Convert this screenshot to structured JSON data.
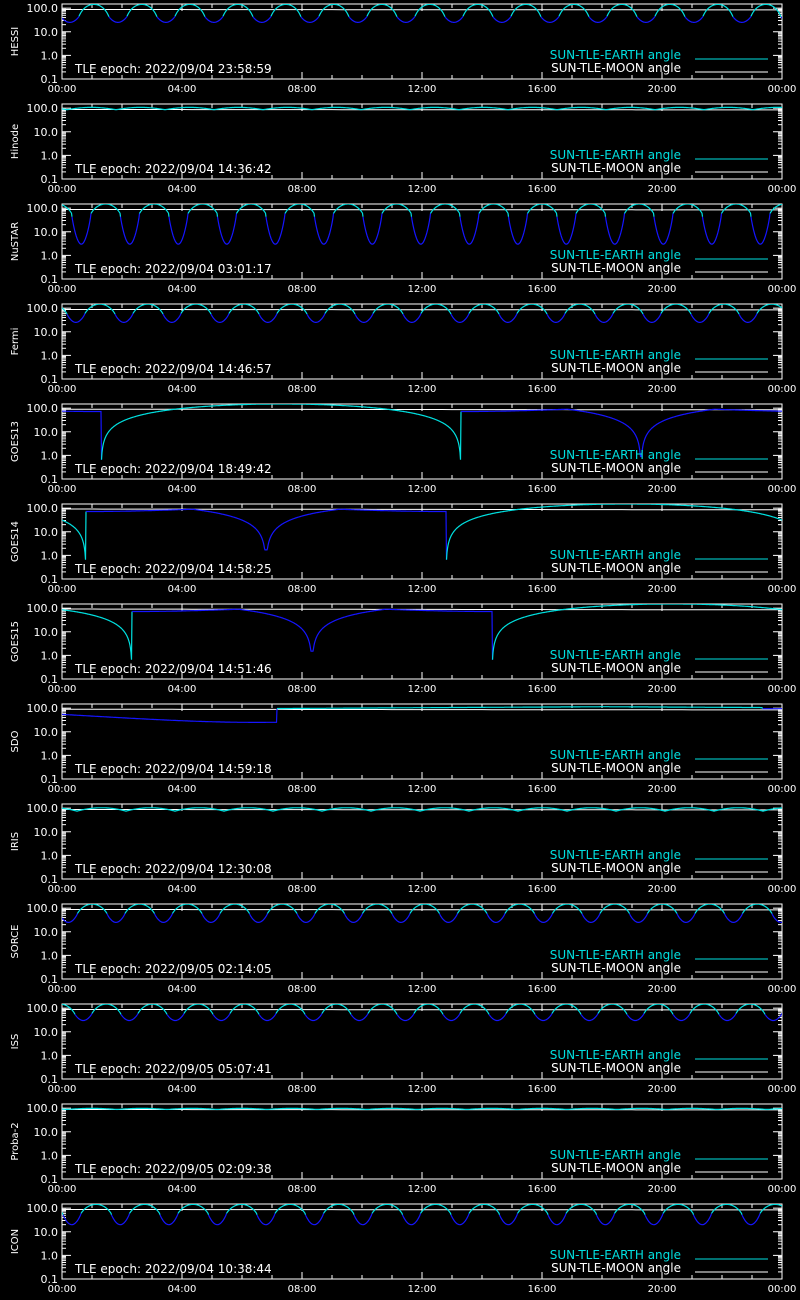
{
  "figure": {
    "background": "#000000",
    "axis_color": "#ffffff",
    "earth_color": "#00e0e0",
    "moon_color": "#ffffff",
    "eclipse_color": "#1515ff",
    "legend": {
      "earth_label": "SUN-TLE-EARTH angle",
      "moon_label": "SUN-TLE-MOON angle"
    },
    "x_ticks": [
      "00:00",
      "04:00",
      "08:00",
      "12:00",
      "16:00",
      "20:00",
      "00:00"
    ],
    "y_ticks": [
      "100.0",
      "10.0",
      "1.0",
      "0.1"
    ]
  },
  "chart_data": [
    {
      "type": "line",
      "satellite": "HESSI",
      "epoch_text": "TLE epoch: 2022/09/04 23:58:59",
      "xlim": [
        "00:00",
        "24:00"
      ],
      "ylim": [
        0.1,
        150
      ],
      "yscale": "log",
      "series": [
        {
          "name": "SUN-TLE-EARTH angle",
          "model": "orbital",
          "period_min": 96,
          "phase_min": 34,
          "max": 145,
          "min": 45,
          "visible_fraction": 0.62,
          "eclipse_min": 25
        },
        {
          "name": "SUN-TLE-MOON angle",
          "model": "drift",
          "start": 88,
          "end": 84
        }
      ]
    },
    {
      "type": "line",
      "satellite": "Hinode",
      "epoch_text": "TLE epoch: 2022/09/04 14:36:42",
      "xlim": [
        "00:00",
        "24:00"
      ],
      "ylim": [
        0.1,
        150
      ],
      "yscale": "log",
      "series": [
        {
          "name": "SUN-TLE-EARTH angle",
          "model": "orbital",
          "period_min": 98,
          "phase_min": 10,
          "max": 108,
          "min": 86,
          "visible_fraction": 1.0,
          "eclipse_min": 86
        },
        {
          "name": "SUN-TLE-MOON angle",
          "model": "drift",
          "start": 88,
          "end": 84
        }
      ]
    },
    {
      "type": "line",
      "satellite": "NuSTAR",
      "epoch_text": "TLE epoch: 2022/09/04 03:01:17",
      "xlim": [
        "00:00",
        "24:00"
      ],
      "ylim": [
        0.1,
        150
      ],
      "yscale": "log",
      "series": [
        {
          "name": "SUN-TLE-EARTH angle",
          "model": "orbital",
          "period_min": 97,
          "phase_min": 58,
          "max": 150,
          "min": 60,
          "visible_fraction": 0.6,
          "eclipse_min": 3
        },
        {
          "name": "SUN-TLE-MOON angle",
          "model": "drift",
          "start": 88,
          "end": 84
        }
      ]
    },
    {
      "type": "line",
      "satellite": "Fermi",
      "epoch_text": "TLE epoch: 2022/09/04 14:46:57",
      "xlim": [
        "00:00",
        "24:00"
      ],
      "ylim": [
        0.1,
        150
      ],
      "yscale": "log",
      "series": [
        {
          "name": "SUN-TLE-EARTH angle",
          "model": "orbital",
          "period_min": 96,
          "phase_min": 46,
          "max": 148,
          "min": 60,
          "visible_fraction": 0.62,
          "eclipse_min": 25
        },
        {
          "name": "SUN-TLE-MOON angle",
          "model": "drift",
          "start": 88,
          "end": 84
        }
      ]
    },
    {
      "type": "line",
      "satellite": "GOES13",
      "epoch_text": "TLE epoch: 2022/09/04 18:49:42",
      "xlim": [
        "00:00",
        "24:00"
      ],
      "ylim": [
        0.1,
        150
      ],
      "yscale": "log",
      "series": [
        {
          "name": "SUN-TLE-EARTH angle",
          "model": "geo",
          "noon_min": 438,
          "min_angle": 0.9
        },
        {
          "name": "SUN-TLE-MOON angle",
          "model": "drift",
          "start": 90,
          "end": 85
        }
      ]
    },
    {
      "type": "line",
      "satellite": "GOES14",
      "epoch_text": "TLE epoch: 2022/09/04 14:58:25",
      "xlim": [
        "00:00",
        "24:00"
      ],
      "ylim": [
        0.1,
        150
      ],
      "yscale": "log",
      "series": [
        {
          "name": "SUN-TLE-EARTH angle",
          "model": "geo",
          "noon_min": 1128,
          "min_angle": 1.7
        },
        {
          "name": "SUN-TLE-MOON angle",
          "model": "drift",
          "start": 92,
          "end": 85
        }
      ]
    },
    {
      "type": "line",
      "satellite": "GOES15",
      "epoch_text": "TLE epoch: 2022/09/04 14:51:46",
      "xlim": [
        "00:00",
        "24:00"
      ],
      "ylim": [
        0.1,
        150
      ],
      "yscale": "log",
      "series": [
        {
          "name": "SUN-TLE-EARTH angle",
          "model": "geo",
          "noon_min": 1220,
          "min_angle": 1.5
        },
        {
          "name": "SUN-TLE-MOON angle",
          "model": "drift",
          "start": 92,
          "end": 85
        }
      ]
    },
    {
      "type": "line",
      "satellite": "SDO",
      "epoch_text": "TLE epoch: 2022/09/04 14:59:18",
      "xlim": [
        "00:00",
        "24:00"
      ],
      "ylim": [
        0.1,
        150
      ],
      "yscale": "log",
      "series": [
        {
          "name": "SUN-TLE-EARTH angle",
          "model": "sdo",
          "mid_min": 1085,
          "span_max": 95,
          "span_min": 25,
          "curve_center_min": 390,
          "curve_half_width_min": 600
        },
        {
          "name": "SUN-TLE-MOON angle",
          "model": "drift",
          "start": 90,
          "end": 84
        }
      ]
    },
    {
      "type": "line",
      "satellite": "IRIS",
      "epoch_text": "TLE epoch: 2022/09/04 12:30:08",
      "xlim": [
        "00:00",
        "24:00"
      ],
      "ylim": [
        0.1,
        150
      ],
      "yscale": "log",
      "series": [
        {
          "name": "SUN-TLE-EARTH angle",
          "model": "orbital",
          "period_min": 98,
          "phase_min": 30,
          "max": 104,
          "min": 75,
          "visible_fraction": 1.0,
          "eclipse_min": 75
        },
        {
          "name": "SUN-TLE-MOON angle",
          "model": "drift",
          "start": 88,
          "end": 84
        }
      ]
    },
    {
      "type": "line",
      "satellite": "SORCE",
      "epoch_text": "TLE epoch: 2022/09/05 02:14:05",
      "xlim": [
        "00:00",
        "24:00"
      ],
      "ylim": [
        0.1,
        150
      ],
      "yscale": "log",
      "series": [
        {
          "name": "SUN-TLE-EARTH angle",
          "model": "orbital",
          "period_min": 95,
          "phase_min": 31,
          "max": 148,
          "min": 60,
          "visible_fraction": 0.62,
          "eclipse_min": 25
        },
        {
          "name": "SUN-TLE-MOON angle",
          "model": "drift",
          "start": 88,
          "end": 84
        }
      ]
    },
    {
      "type": "line",
      "satellite": "ISS",
      "epoch_text": "TLE epoch: 2022/09/05 05:07:41",
      "xlim": [
        "00:00",
        "24:00"
      ],
      "ylim": [
        0.1,
        150
      ],
      "yscale": "log",
      "series": [
        {
          "name": "SUN-TLE-EARTH angle",
          "model": "orbital",
          "period_min": 92,
          "phase_min": 60,
          "max": 148,
          "min": 60,
          "visible_fraction": 0.62,
          "eclipse_min": 30
        },
        {
          "name": "SUN-TLE-MOON angle",
          "model": "drift",
          "start": 88,
          "end": 84
        }
      ]
    },
    {
      "type": "line",
      "satellite": "Proba-2",
      "epoch_text": "TLE epoch: 2022/09/05 02:09:38",
      "xlim": [
        "00:00",
        "24:00"
      ],
      "ylim": [
        0.1,
        150
      ],
      "yscale": "log",
      "series": [
        {
          "name": "SUN-TLE-EARTH angle",
          "model": "orbital",
          "period_min": 100,
          "phase_min": 10,
          "max": 98,
          "min": 88,
          "visible_fraction": 1.0,
          "eclipse_min": 88
        },
        {
          "name": "SUN-TLE-MOON angle",
          "model": "drift",
          "start": 88,
          "end": 84
        }
      ]
    },
    {
      "type": "line",
      "satellite": "ICON",
      "epoch_text": "TLE epoch: 2022/09/04 10:38:44",
      "xlim": [
        "00:00",
        "24:00"
      ],
      "ylim": [
        0.1,
        150
      ],
      "yscale": "log",
      "series": [
        {
          "name": "SUN-TLE-EARTH angle",
          "model": "orbital",
          "period_min": 97,
          "phase_min": 38,
          "max": 145,
          "min": 60,
          "visible_fraction": 0.62,
          "eclipse_min": 20
        },
        {
          "name": "SUN-TLE-MOON angle",
          "model": "drift",
          "start": 88,
          "end": 84
        }
      ]
    }
  ]
}
